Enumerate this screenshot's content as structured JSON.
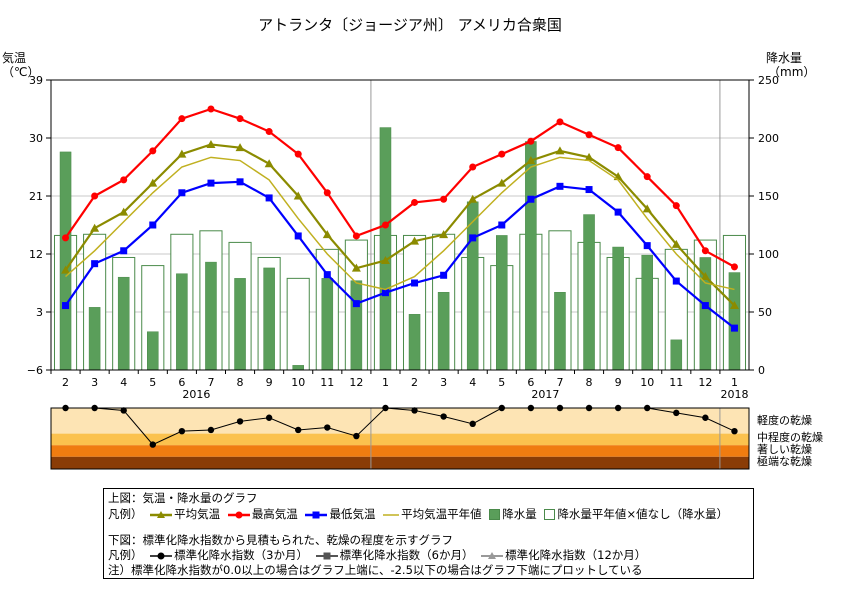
{
  "title": "アトランタ〔ジョージア州〕 アメリカ合衆国",
  "chart_data": [
    {
      "type": "line+bar",
      "axes": {
        "left_label_line1": "気温",
        "left_label_line2": "（℃）",
        "right_label_line1": "降水量",
        "right_label_line2": "（mm）",
        "left_ticks": [
          "39",
          "30",
          "21",
          "12",
          "3",
          "−6"
        ],
        "right_ticks": [
          "250",
          "200",
          "150",
          "100",
          "50",
          "0"
        ],
        "ylim_temp": [
          -6,
          39
        ],
        "ylim_precip": [
          0,
          250
        ],
        "grid": "horizontal"
      },
      "categories": [
        "2",
        "3",
        "4",
        "5",
        "6",
        "7",
        "8",
        "9",
        "10",
        "11",
        "12",
        "1",
        "2",
        "3",
        "4",
        "5",
        "6",
        "7",
        "8",
        "9",
        "10",
        "11",
        "12",
        "1"
      ],
      "year_labels": [
        {
          "index": 4.5,
          "text": "2016"
        },
        {
          "index": 16.5,
          "text": "2017"
        },
        {
          "index": 23,
          "text": "2018"
        }
      ],
      "year_dividers": [
        10.5,
        22.5
      ],
      "series": [
        {
          "name": "平均気温",
          "color": "#8b8b00",
          "marker": "triangle",
          "values": [
            9.5,
            16,
            18.5,
            23,
            27.5,
            29,
            28.5,
            26,
            21,
            15,
            9.8,
            11,
            14,
            15,
            20.5,
            23,
            26.5,
            28,
            27,
            24,
            19,
            13.5,
            8.5,
            4
          ]
        },
        {
          "name": "最高気温",
          "color": "#ff0000",
          "marker": "circle",
          "values": [
            14.5,
            21,
            23.5,
            28,
            33,
            34.5,
            33,
            31,
            27.5,
            21.5,
            14.8,
            16.5,
            20,
            20.5,
            25.5,
            27.5,
            29.5,
            32.5,
            30.5,
            28.5,
            24,
            19.5,
            12.5,
            10
          ]
        },
        {
          "name": "最低気温",
          "color": "#0000ff",
          "marker": "square",
          "values": [
            4,
            10.5,
            12.5,
            16.5,
            21.5,
            23,
            23.2,
            20.7,
            14.8,
            8.8,
            4.3,
            6,
            7.5,
            8.7,
            14.5,
            16.5,
            20.5,
            22.5,
            22,
            18.5,
            13.3,
            7.8,
            4,
            0.5
          ]
        },
        {
          "name": "平均気温平年値",
          "color": "#c0b020",
          "marker": "none",
          "values": [
            8.5,
            12.5,
            17,
            21.5,
            25.5,
            27,
            26.5,
            23.5,
            17.5,
            12,
            7.5,
            6.5,
            8.5,
            12.5,
            17,
            21.5,
            25.5,
            27,
            26.5,
            23.5,
            17.5,
            12,
            7.5,
            6.5
          ]
        }
      ],
      "precip": {
        "name": "降水量",
        "color": "#5a9e5a",
        "values": [
          188,
          54,
          80,
          33,
          83,
          93,
          79,
          88,
          4,
          79,
          77,
          209,
          48,
          67,
          145,
          116,
          197,
          67,
          134,
          106,
          99,
          26,
          97,
          84
        ]
      },
      "precip_normal": {
        "name": "降水量平年値",
        "values": [
          116,
          117,
          97,
          90,
          117,
          120,
          110,
          97,
          79,
          104,
          112,
          116,
          116,
          117,
          97,
          90,
          117,
          120,
          110,
          97,
          79,
          104,
          112,
          116
        ]
      }
    },
    {
      "type": "drought-index",
      "levels": [
        {
          "label": "軽度の乾燥",
          "color": "#fde4b4"
        },
        {
          "label": "中程度の乾燥",
          "color": "#fbc24e"
        },
        {
          "label": "著しい乾燥",
          "color": "#f07c10"
        },
        {
          "label": "極端な乾燥",
          "color": "#8a3c06"
        }
      ],
      "spi3": [
        0.0,
        0.0,
        -0.1,
        -1.5,
        -0.95,
        -0.9,
        -0.55,
        -0.4,
        -0.9,
        -0.8,
        -1.15,
        0.0,
        -0.1,
        -0.35,
        -0.65,
        0.0,
        0.0,
        0.0,
        0.0,
        0.0,
        0.0,
        -0.2,
        -0.4,
        -0.95
      ]
    }
  ],
  "legend": {
    "top_heading": "上図：気温・降水量のグラフ",
    "top_prefix": "凡例）",
    "items_top": [
      "平均気温",
      "最高気温",
      "最低気温",
      "平均気温平年値",
      "降水量",
      "降水量平年値"
    ],
    "no_value_note": "×値なし（降水量）",
    "bottom_heading": "下図：標準化降水指数から見積もられた、乾燥の程度を示すグラフ",
    "bottom_prefix": "凡例）",
    "items_bottom": [
      "標準化降水指数（3か月）",
      "標準化降水指数（6か月）",
      "標準化降水指数（12か月）"
    ],
    "note": "注）標準化降水指数が0.0以上の場合はグラフ上端に、-2.5以下の場合はグラフ下端にプロットしている"
  }
}
